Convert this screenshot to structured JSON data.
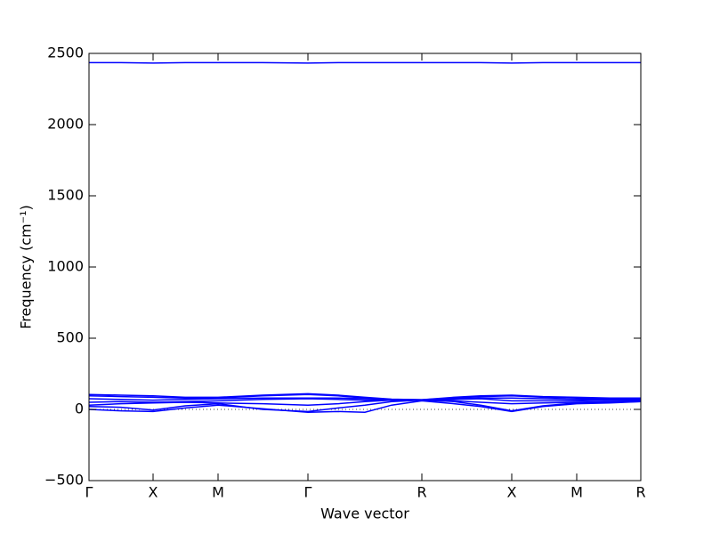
{
  "chart_data": {
    "type": "line",
    "xlabel": "Wave vector",
    "ylabel": "Frequency (cm⁻¹)",
    "x": [
      0,
      0.36,
      0.72,
      1.08,
      1.45,
      1.95,
      2.46,
      2.8,
      3.1,
      3.4,
      3.74,
      4.1,
      4.4,
      4.75,
      5.1,
      5.48,
      5.85,
      6.2
    ],
    "series": [
      {
        "color": "#0000ff",
        "values": [
          0,
          -10,
          -15,
          10,
          30,
          5,
          -20,
          -15,
          -20,
          30,
          60,
          40,
          20,
          -15,
          20,
          40,
          45,
          55
        ]
      },
      {
        "color": "#0000ff",
        "values": [
          20,
          15,
          -5,
          25,
          40,
          0,
          -15,
          10,
          30,
          55,
          65,
          55,
          30,
          -10,
          25,
          45,
          50,
          55
        ]
      },
      {
        "color": "#0000ff",
        "values": [
          30,
          40,
          45,
          50,
          45,
          40,
          30,
          40,
          55,
          65,
          65,
          60,
          50,
          40,
          45,
          50,
          55,
          60
        ]
      },
      {
        "color": "#0000ff",
        "values": [
          50,
          55,
          50,
          55,
          60,
          70,
          75,
          70,
          65,
          65,
          65,
          70,
          75,
          60,
          60,
          60,
          65,
          65
        ]
      },
      {
        "color": "#0000ff",
        "values": [
          75,
          70,
          65,
          70,
          75,
          80,
          80,
          80,
          75,
          70,
          65,
          75,
          80,
          80,
          75,
          70,
          70,
          70
        ]
      },
      {
        "color": "#0000ff",
        "values": [
          95,
          90,
          85,
          80,
          80,
          95,
          105,
          95,
          80,
          70,
          68,
          80,
          90,
          95,
          85,
          80,
          78,
          75
        ]
      },
      {
        "color": "#0000ff",
        "values": [
          105,
          100,
          95,
          85,
          85,
          100,
          110,
          100,
          85,
          72,
          68,
          85,
          95,
          100,
          90,
          85,
          80,
          80
        ]
      },
      {
        "color": "#0000ff",
        "values": [
          2435,
          2435,
          2432,
          2435,
          2435,
          2435,
          2432,
          2435,
          2435,
          2435,
          2435,
          2435,
          2435,
          2432,
          2435,
          2435,
          2435,
          2435
        ]
      }
    ],
    "reference_line": 0,
    "xlim": [
      0,
      6.2
    ],
    "xticks": [
      {
        "value": 0,
        "label": "Γ"
      },
      {
        "value": 0.72,
        "label": "X"
      },
      {
        "value": 1.45,
        "label": "M"
      },
      {
        "value": 2.46,
        "label": "Γ"
      },
      {
        "value": 3.74,
        "label": "R"
      },
      {
        "value": 4.75,
        "label": "X"
      },
      {
        "value": 5.48,
        "label": "M"
      },
      {
        "value": 6.2,
        "label": "R"
      }
    ],
    "ylim": [
      -500,
      2500
    ],
    "yticks": [
      {
        "value": -500,
        "label": "−500"
      },
      0,
      500,
      1000,
      1500,
      2000,
      2500
    ]
  }
}
